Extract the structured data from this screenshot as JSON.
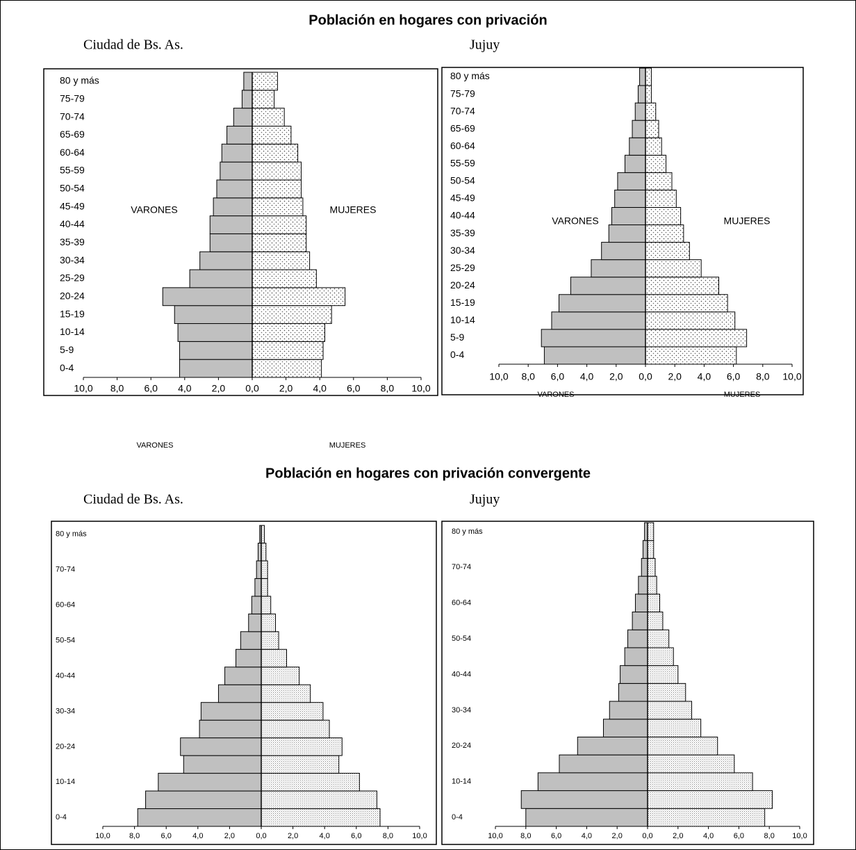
{
  "headings": [
    "Población en hogares con privación",
    "Población en hogares con privación convergente"
  ],
  "chart_data": [
    {
      "type": "pyramid",
      "subtitle": "Ciudad de Bs. As.",
      "categories": [
        "0-4",
        "5-9",
        "10-14",
        "15-19",
        "20-24",
        "25-29",
        "30-34",
        "35-39",
        "40-44",
        "45-49",
        "50-54",
        "55-59",
        "60-64",
        "65-69",
        "70-74",
        "75-79",
        "80 y más"
      ],
      "series": [
        {
          "name": "VARONES",
          "color": "#c0c0c0",
          "values": [
            -4.3,
            -4.3,
            -4.4,
            -4.6,
            -5.3,
            -3.7,
            -3.1,
            -2.5,
            -2.5,
            -2.3,
            -2.1,
            -1.9,
            -1.8,
            -1.5,
            -1.1,
            -0.6,
            -0.5
          ]
        },
        {
          "name": "MUJERES",
          "color": "#ffffff",
          "pattern": "dots",
          "values": [
            4.1,
            4.2,
            4.3,
            4.7,
            5.5,
            3.8,
            3.4,
            3.2,
            3.2,
            3.0,
            2.9,
            2.9,
            2.7,
            2.3,
            1.9,
            1.3,
            1.5
          ]
        }
      ],
      "xlim": [
        -10,
        10
      ],
      "xticks": [
        {
          "value": -10,
          "label": "10,0"
        },
        {
          "value": -8,
          "label": "8,0"
        },
        {
          "value": -6,
          "label": "6,0"
        },
        {
          "value": -4,
          "label": "4,0"
        },
        {
          "value": -2,
          "label": "2,0"
        },
        {
          "value": 0,
          "label": "0,0"
        },
        {
          "value": 2,
          "label": "2,0"
        },
        {
          "value": 4,
          "label": "4,0"
        },
        {
          "value": 6,
          "label": "6,0"
        },
        {
          "value": 8,
          "label": "8,0"
        },
        {
          "value": 10,
          "label": "10,0"
        }
      ]
    },
    {
      "type": "pyramid",
      "subtitle": "Jujuy",
      "categories": [
        "0-4",
        "5-9",
        "10-14",
        "15-19",
        "20-24",
        "25-29",
        "30-34",
        "35-39",
        "40-44",
        "45-49",
        "50-54",
        "55-59",
        "60-64",
        "65-69",
        "70-74",
        "75-79",
        "80 y más"
      ],
      "series": [
        {
          "name": "VARONES",
          "color": "#c0c0c0",
          "values": [
            -6.9,
            -7.1,
            -6.4,
            -5.9,
            -5.1,
            -3.7,
            -3.0,
            -2.5,
            -2.3,
            -2.1,
            -1.9,
            -1.4,
            -1.1,
            -0.9,
            -0.7,
            -0.5,
            -0.4
          ]
        },
        {
          "name": "MUJERES",
          "color": "#ffffff",
          "pattern": "dots",
          "values": [
            6.2,
            6.9,
            6.1,
            5.6,
            5.0,
            3.8,
            3.0,
            2.6,
            2.4,
            2.1,
            1.8,
            1.4,
            1.1,
            0.9,
            0.7,
            0.4,
            0.4
          ]
        }
      ],
      "xlim": [
        -10,
        10
      ],
      "xticks": [
        {
          "value": -10,
          "label": "10,0"
        },
        {
          "value": -8,
          "label": "8,0"
        },
        {
          "value": -6,
          "label": "6,0"
        },
        {
          "value": -4,
          "label": "4,0"
        },
        {
          "value": -2,
          "label": "2,0"
        },
        {
          "value": 0,
          "label": "0,0"
        },
        {
          "value": 2,
          "label": "2,0"
        },
        {
          "value": 4,
          "label": "4,0"
        },
        {
          "value": 6,
          "label": "6,0"
        },
        {
          "value": 8,
          "label": "8,0"
        },
        {
          "value": 10,
          "label": "10,0"
        }
      ]
    },
    {
      "type": "pyramid",
      "subtitle": "Ciudad de Bs. As.",
      "categories": [
        "0-4",
        null,
        "10-14",
        null,
        "20-24",
        null,
        "30-34",
        null,
        "40-44",
        null,
        "50-54",
        null,
        "60-64",
        null,
        "70-74",
        null,
        "80 y más"
      ],
      "series": [
        {
          "name": "VARONES",
          "color": "#c0c0c0",
          "values": [
            -7.8,
            -7.3,
            -6.5,
            -4.9,
            -5.1,
            -3.9,
            -3.8,
            -2.7,
            -2.3,
            -1.6,
            -1.3,
            -0.8,
            -0.6,
            -0.4,
            -0.3,
            -0.2,
            -0.1
          ]
        },
        {
          "name": "MUJERES",
          "color": "#ffffff",
          "pattern": "fine-dots",
          "values": [
            7.5,
            7.3,
            6.2,
            4.9,
            5.1,
            4.3,
            3.9,
            3.1,
            2.4,
            1.6,
            1.1,
            0.9,
            0.6,
            0.4,
            0.4,
            0.3,
            0.2
          ]
        }
      ],
      "xlim": [
        -10,
        10
      ],
      "xticks": [
        {
          "value": -10,
          "label": "10,0"
        },
        {
          "value": -8,
          "label": "8,0"
        },
        {
          "value": -6,
          "label": "6,0"
        },
        {
          "value": -4,
          "label": "4,0"
        },
        {
          "value": -2,
          "label": "2,0"
        },
        {
          "value": 0,
          "label": "0,0"
        },
        {
          "value": 2,
          "label": "2,0"
        },
        {
          "value": 4,
          "label": "4,0"
        },
        {
          "value": 6,
          "label": "6,0"
        },
        {
          "value": 8,
          "label": "8,0"
        },
        {
          "value": 10,
          "label": "10,0"
        }
      ]
    },
    {
      "type": "pyramid",
      "subtitle": "Jujuy",
      "categories": [
        "0-4",
        null,
        "10-14",
        null,
        "20-24",
        null,
        "30-34",
        null,
        "40-44",
        null,
        "50-54",
        null,
        "60-64",
        null,
        "70-74",
        null,
        "80 y más"
      ],
      "series": [
        {
          "name": "VARONES",
          "color": "#c0c0c0",
          "values": [
            -8.0,
            -8.3,
            -7.2,
            -5.8,
            -4.6,
            -2.9,
            -2.5,
            -1.9,
            -1.8,
            -1.5,
            -1.3,
            -1.0,
            -0.8,
            -0.6,
            -0.4,
            -0.3,
            -0.2
          ]
        },
        {
          "name": "MUJERES",
          "color": "#ffffff",
          "pattern": "fine-dots",
          "values": [
            7.7,
            8.2,
            6.9,
            5.7,
            4.6,
            3.5,
            2.9,
            2.5,
            2.0,
            1.7,
            1.4,
            1.0,
            0.8,
            0.6,
            0.5,
            0.4,
            0.4
          ]
        }
      ],
      "xlim": [
        -10,
        10
      ],
      "xticks": [
        {
          "value": -10,
          "label": "10,0"
        },
        {
          "value": -8,
          "label": "8,0"
        },
        {
          "value": -6,
          "label": "6,0"
        },
        {
          "value": -4,
          "label": "4,0"
        },
        {
          "value": -2,
          "label": "2,0"
        },
        {
          "value": 0,
          "label": "0,0"
        },
        {
          "value": 2,
          "label": "2,0"
        },
        {
          "value": 4,
          "label": "4,0"
        },
        {
          "value": 6,
          "label": "6,0"
        },
        {
          "value": 8,
          "label": "8,0"
        },
        {
          "value": 10,
          "label": "10,0"
        }
      ]
    }
  ]
}
